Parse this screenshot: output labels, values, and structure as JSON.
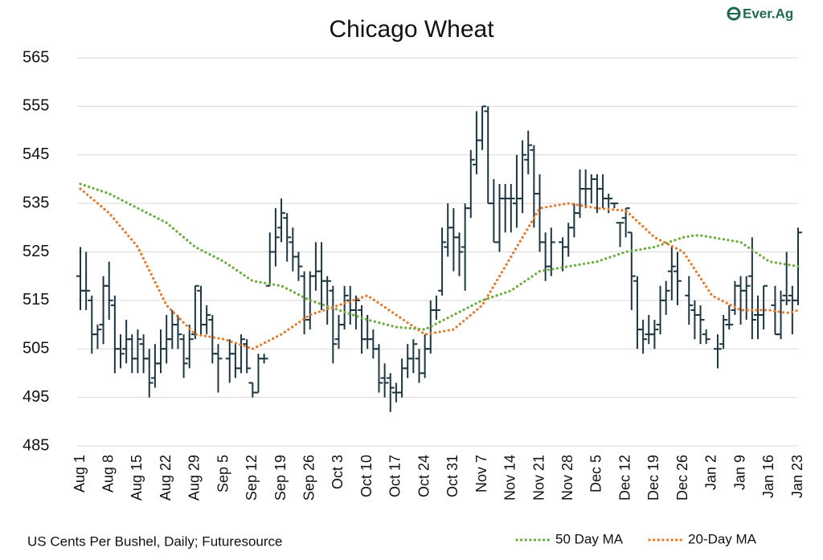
{
  "chart_data": {
    "type": "ohlc",
    "title": "Chicago Wheat",
    "logo": "Ever.Ag",
    "source": "US Cents Per Bushel, Daily; Futuresource",
    "categories": [
      "Aug 1",
      null,
      null,
      null,
      null,
      "Aug 8",
      null,
      null,
      null,
      null,
      "Aug 15",
      null,
      null,
      null,
      null,
      "Aug 22",
      null,
      null,
      null,
      null,
      "Aug 29",
      null,
      null,
      null,
      null,
      "Sep 5",
      null,
      null,
      null,
      null,
      "Sep 12",
      null,
      null,
      null,
      null,
      "Sep 19",
      null,
      null,
      null,
      null,
      "Sep 26",
      null,
      null,
      null,
      null,
      "Oct 3",
      null,
      null,
      null,
      null,
      "Oct 10",
      null,
      null,
      null,
      null,
      "Oct 17",
      null,
      null,
      null,
      null,
      "Oct 24",
      null,
      null,
      null,
      null,
      "Oct 31",
      null,
      null,
      null,
      null,
      "Nov 7",
      null,
      null,
      null,
      null,
      "Nov 14",
      null,
      null,
      null,
      null,
      "Nov 21",
      null,
      null,
      null,
      null,
      "Nov 28",
      null,
      null,
      null,
      null,
      "Dec 5",
      null,
      null,
      null,
      null,
      "Dec 12",
      null,
      null,
      null,
      null,
      "Dec 19",
      null,
      null,
      null,
      null,
      "Dec 26",
      null,
      null,
      null,
      null,
      "Jan 2",
      null,
      null,
      null,
      null,
      "Jan 9",
      null,
      null,
      null,
      null,
      "Jan 16",
      null,
      null,
      null,
      null,
      "Jan 23"
    ],
    "ohlc": {
      "color": "#1d3640",
      "open": [
        520,
        517,
        515,
        508,
        510,
        518,
        514,
        505,
        505,
        507,
        503,
        506,
        503,
        499,
        502,
        505,
        507,
        510,
        507,
        503,
        508,
        517,
        510,
        511,
        504,
        null,
        503,
        504,
        501,
        506,
        498,
        496,
        503,
        518,
        525,
        530,
        532,
        527,
        524,
        520,
        511,
        520,
        521,
        519,
        517,
        507,
        510,
        515,
        513,
        513,
        507,
        507,
        505,
        499,
        499,
        496,
        496,
        501,
        503,
        503,
        500,
        505,
        513,
        517,
        526,
        530,
        528,
        526,
        534,
        543,
        548,
        554,
        535,
        527,
        536,
        536,
        535,
        536,
        544,
        546,
        537,
        527,
        522,
        null,
        527,
        526,
        530,
        533,
        538,
        538,
        540,
        538,
        536,
        535,
        531,
        532,
        529,
        519,
        509,
        508,
        508,
        510,
        515,
        521,
        521,
        null,
        516,
        513,
        512,
        508,
        null,
        505,
        506,
        510,
        513,
        518,
        517,
        520,
        512,
        512,
        null,
        514,
        508,
        516,
        516,
        515
      ],
      "high": [
        526,
        525,
        516,
        510,
        520,
        523,
        516,
        508,
        511,
        508,
        509,
        508,
        505,
        506,
        509,
        512,
        513,
        512,
        508,
        510,
        518,
        518,
        514,
        512,
        506,
        null,
        507,
        506,
        508,
        507,
        498,
        504,
        504,
        529,
        534,
        536,
        533,
        530,
        525,
        521,
        521,
        527,
        527,
        520,
        518,
        512,
        518,
        518,
        516,
        514,
        512,
        509,
        506,
        502,
        500,
        498,
        503,
        506,
        507,
        505,
        508,
        515,
        516,
        530,
        535,
        534,
        529,
        535,
        546,
        554,
        555,
        555,
        540,
        539,
        539,
        539,
        545,
        548,
        550,
        547,
        541,
        529,
        530,
        null,
        528,
        531,
        535,
        542,
        542,
        541,
        541,
        541,
        537,
        535,
        531,
        534,
        529,
        520,
        511,
        512,
        511,
        518,
        519,
        526,
        525,
        null,
        520,
        515,
        514,
        509,
        null,
        508,
        512,
        514,
        519,
        520,
        520,
        528,
        516,
        518,
        null,
        518,
        517,
        525,
        518,
        530
      ],
      "low": [
        513,
        513,
        504,
        505,
        506,
        511,
        500,
        501,
        502,
        500,
        500,
        500,
        495,
        497,
        500,
        502,
        505,
        505,
        499,
        501,
        507,
        508,
        508,
        502,
        496,
        null,
        498,
        499,
        500,
        500,
        495,
        496,
        502,
        518,
        522,
        527,
        523,
        521,
        519,
        508,
        509,
        517,
        513,
        510,
        502,
        505,
        509,
        510,
        509,
        504,
        505,
        503,
        496,
        495,
        492,
        494,
        495,
        499,
        500,
        498,
        499,
        504,
        511,
        516,
        524,
        521,
        520,
        517,
        532,
        541,
        546,
        535,
        527,
        525,
        529,
        529,
        530,
        533,
        541,
        530,
        525,
        519,
        520,
        null,
        521,
        524,
        528,
        532,
        534,
        535,
        533,
        534,
        533,
        534,
        526,
        528,
        513,
        505,
        504,
        506,
        505,
        508,
        512,
        515,
        514,
        null,
        510,
        507,
        506,
        506,
        null,
        501,
        505,
        509,
        512,
        510,
        511,
        507,
        507,
        509,
        null,
        508,
        507,
        514,
        508,
        514
      ],
      "close": [
        517,
        517,
        508,
        509,
        518,
        515,
        505,
        504,
        507,
        503,
        507,
        503,
        498,
        502,
        505,
        507,
        510,
        508,
        502,
        507,
        518,
        510,
        512,
        504,
        503,
        null,
        504,
        501,
        507,
        501,
        496,
        503,
        503,
        525,
        528,
        533,
        528,
        524,
        522,
        511,
        520,
        521,
        519,
        519,
        506,
        510,
        516,
        513,
        515,
        507,
        507,
        505,
        498,
        498,
        497,
        496,
        501,
        503,
        506,
        500,
        505,
        513,
        513,
        527,
        530,
        528,
        525,
        534,
        544,
        548,
        555,
        535,
        527,
        536,
        536,
        536,
        536,
        545,
        547,
        537,
        527,
        522,
        527,
        null,
        526,
        530,
        533,
        538,
        538,
        540,
        538,
        536,
        536,
        535,
        531,
        534,
        520,
        509,
        507,
        508,
        509,
        515,
        517,
        522,
        519,
        null,
        514,
        512,
        511,
        507,
        null,
        505,
        511,
        510,
        518,
        517,
        518,
        511,
        512,
        518,
        null,
        508,
        515,
        515,
        515,
        529
      ]
    },
    "series": [
      {
        "name": "50 Day MA",
        "color": "#6aab3c",
        "values": [
          539,
          538.6,
          538.2,
          537.8,
          537.4,
          537,
          536.4,
          535.8,
          535.2,
          534.6,
          534,
          533.4,
          532.8,
          532.2,
          531.6,
          531,
          530,
          529,
          528,
          527,
          526,
          525.4,
          524.8,
          524.2,
          523.6,
          523,
          522.2,
          521.4,
          520.6,
          519.8,
          519,
          518.8,
          518.6,
          518.4,
          518.2,
          518,
          517.4,
          516.8,
          516.2,
          515.6,
          515,
          514.6,
          514.2,
          513.8,
          513.4,
          513,
          512.6,
          512.2,
          511.8,
          511.4,
          511,
          510.7,
          510.4,
          510.1,
          509.8,
          509.5,
          509.4,
          509.3,
          509.2,
          509.1,
          509,
          509.6,
          510.2,
          510.8,
          511.4,
          512,
          512.6,
          513.2,
          513.8,
          514.4,
          515,
          515.4,
          515.8,
          516.2,
          516.6,
          517,
          517.8,
          518.6,
          519.4,
          520.2,
          521,
          521.2,
          521.4,
          521.6,
          521.8,
          522,
          522.2,
          522.4,
          522.6,
          522.8,
          523,
          523.4,
          523.8,
          524.2,
          524.6,
          525,
          525.2,
          525.4,
          525.6,
          525.8,
          526,
          526.4,
          526.8,
          527.2,
          527.6,
          528,
          528.2,
          528.4,
          528.4,
          528.2,
          528,
          527.8,
          527.6,
          527.4,
          527.2,
          527,
          526.2,
          525.4,
          524.6,
          523.8,
          523,
          522.8,
          522.6,
          522.4,
          522.2,
          522
        ]
      },
      {
        "name": "20-Day MA",
        "color": "#e8782a",
        "values": [
          538,
          537,
          536,
          535,
          534,
          533,
          531.6,
          530.2,
          528.8,
          527.4,
          526,
          523.6,
          521.2,
          518.8,
          516.4,
          514,
          512.8,
          511.6,
          510.4,
          509.2,
          508,
          507.8,
          507.6,
          507.4,
          507.2,
          507,
          506.6,
          506.2,
          505.8,
          505.4,
          505,
          505.6,
          506.2,
          506.8,
          507.4,
          508,
          508.8,
          509.6,
          510.4,
          511.2,
          512,
          512.4,
          512.8,
          513.2,
          513.6,
          514,
          514.4,
          514.8,
          515.2,
          515.6,
          516,
          515.2,
          514.4,
          513.6,
          512.8,
          512,
          511.2,
          510.4,
          509.6,
          508.8,
          508,
          508.2,
          508.4,
          508.6,
          508.8,
          509,
          510,
          511,
          512,
          513,
          514,
          516,
          518,
          520,
          522,
          524,
          526,
          528,
          530,
          532,
          534,
          534.2,
          534.4,
          534.6,
          534.8,
          535,
          534.8,
          534.6,
          534.4,
          534.2,
          534,
          533.9,
          533.8,
          533.7,
          533.6,
          533.5,
          532.4,
          531.3,
          530.2,
          529.1,
          528,
          527.4,
          526.8,
          526.2,
          525.6,
          525,
          523.2,
          521.4,
          519.6,
          517.8,
          516,
          515.4,
          514.8,
          514.2,
          513.6,
          513,
          513,
          513,
          513,
          513,
          513,
          512.8,
          512.6,
          512.4,
          512.6,
          513
        ]
      }
    ],
    "ylim": [
      485,
      565
    ],
    "yticks": [
      485,
      495,
      505,
      515,
      525,
      535,
      545,
      555,
      565
    ],
    "grid": true,
    "legend": "bottom-right"
  }
}
